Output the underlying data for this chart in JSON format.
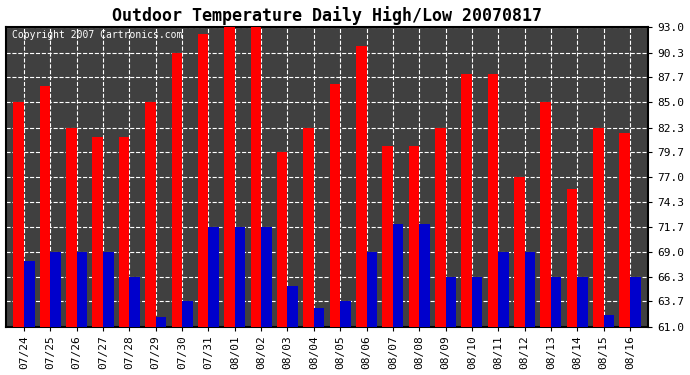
{
  "title": "Outdoor Temperature Daily High/Low 20070817",
  "copyright": "Copyright 2007 Cartronics.com",
  "dates": [
    "07/24",
    "07/25",
    "07/26",
    "07/27",
    "07/28",
    "07/29",
    "07/30",
    "07/31",
    "08/01",
    "08/02",
    "08/03",
    "08/04",
    "08/05",
    "08/06",
    "08/07",
    "08/08",
    "08/09",
    "08/10",
    "08/11",
    "08/12",
    "08/13",
    "08/14",
    "08/15",
    "08/16"
  ],
  "highs": [
    85.0,
    86.7,
    82.3,
    81.3,
    81.3,
    85.0,
    90.3,
    92.3,
    93.0,
    93.0,
    79.7,
    82.3,
    87.0,
    91.0,
    80.3,
    80.3,
    82.3,
    88.0,
    88.0,
    77.0,
    85.0,
    75.7,
    82.3,
    81.7
  ],
  "lows": [
    68.0,
    69.0,
    69.0,
    69.0,
    66.3,
    62.0,
    63.7,
    71.7,
    71.7,
    71.7,
    65.3,
    63.0,
    63.7,
    69.0,
    72.0,
    72.0,
    66.3,
    66.3,
    69.0,
    69.0,
    66.3,
    66.3,
    62.3,
    66.3
  ],
  "high_color": "#ff0000",
  "low_color": "#0000cc",
  "bg_color": "#ffffff",
  "plot_bg_color": "#404040",
  "grid_color": "#ffffff",
  "ymin": 61.0,
  "ymax": 93.0,
  "yticks": [
    61.0,
    63.7,
    66.3,
    69.0,
    71.7,
    74.3,
    77.0,
    79.7,
    82.3,
    85.0,
    87.7,
    90.3,
    93.0
  ],
  "bar_width": 0.4,
  "title_fontsize": 12,
  "tick_fontsize": 8
}
